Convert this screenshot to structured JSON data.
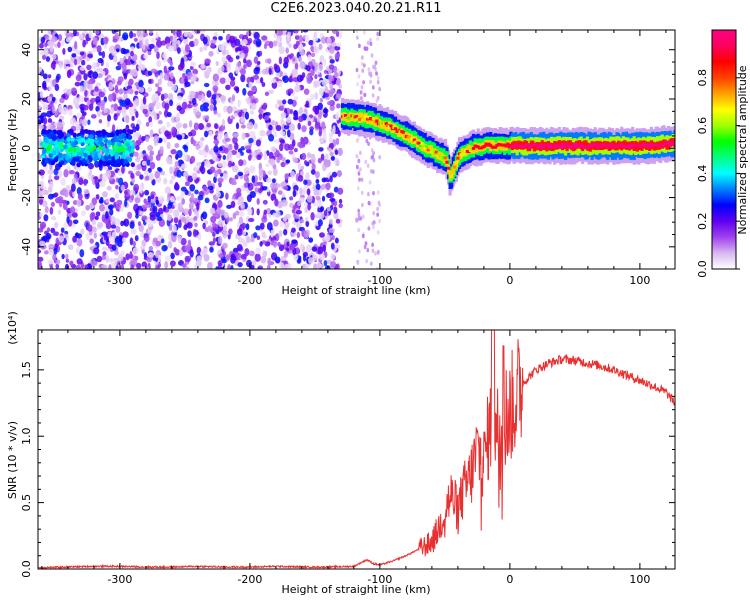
{
  "title": "C2E6.2023.040.20.21.R11",
  "chart_data": [
    {
      "type": "heatmap",
      "xlabel": "Height of straight line (km)",
      "ylabel": "Frequency (Hz)",
      "xlim": [
        -363,
        127
      ],
      "ylim": [
        -49,
        48
      ],
      "xticks": [
        -300,
        -200,
        -100,
        0,
        100
      ],
      "yticks": [
        -40,
        -20,
        0,
        20,
        40
      ],
      "colorbar": {
        "label": "Normalized spectral amplitude",
        "range": [
          0,
          1
        ],
        "ticks": [
          "0.0",
          "0.2",
          "0.4",
          "0.6",
          "0.8"
        ],
        "tick_values": [
          0,
          0.2,
          0.4,
          0.6,
          0.8
        ],
        "colormap": [
          "#ffffff",
          "#d8b8f0",
          "#a040f0",
          "#6000f0",
          "#0000ff",
          "#0080ff",
          "#00ffff",
          "#00ff80",
          "#00ff00",
          "#a0ff00",
          "#ffff00",
          "#ffa000",
          "#ff4000",
          "#ff0000",
          "#ff0060",
          "#ff0080"
        ]
      },
      "features": {
        "noise_region_x": [
          -363,
          -130
        ],
        "sparse_noise_region_x": [
          -118,
          -100
        ],
        "low_signal_band": {
          "x": [
            -360,
            -290
          ],
          "freq": 0,
          "amplitude": 0.35
        },
        "tone_track": [
          {
            "x": -130,
            "freq": 13
          },
          {
            "x": -110,
            "freq": 12
          },
          {
            "x": -95,
            "freq": 9
          },
          {
            "x": -80,
            "freq": 5
          },
          {
            "x": -65,
            "freq": 0
          },
          {
            "x": -55,
            "freq": -3
          },
          {
            "x": -50,
            "freq": -4
          },
          {
            "x": -47,
            "freq": -12
          },
          {
            "x": -40,
            "freq": -3
          },
          {
            "x": -30,
            "freq": 0
          },
          {
            "x": -20,
            "freq": 1
          },
          {
            "x": 0,
            "freq": 1
          },
          {
            "x": 50,
            "freq": 1
          },
          {
            "x": 100,
            "freq": 1
          },
          {
            "x": 127,
            "freq": 2
          }
        ]
      }
    },
    {
      "type": "line",
      "xlabel": "Height of straight line (km)",
      "ylabel": "SNR (10 * v/v)",
      "scale_note": "(x10⁴)",
      "xlim": [
        -363,
        127
      ],
      "ylim": [
        0,
        1.8
      ],
      "xticks": [
        -300,
        -200,
        -100,
        0,
        100
      ],
      "yticks": [
        "0.0",
        "0.5",
        "1.0",
        "1.5"
      ],
      "ytick_values": [
        0,
        0.5,
        1.0,
        1.5
      ],
      "line_color": "#e83030",
      "series": [
        {
          "x": [
            -363,
            -340,
            -320,
            -300,
            -280,
            -260,
            -240,
            -220,
            -200,
            -180,
            -160,
            -140,
            -120,
            -110,
            -105,
            -100,
            -90,
            -80,
            -70,
            -60,
            -55,
            -50,
            -45,
            -40,
            -35,
            -30,
            -25,
            -20,
            -15,
            -10,
            -5,
            0,
            10,
            20,
            30,
            40,
            50,
            60,
            70,
            80,
            90,
            100,
            110,
            120,
            127
          ],
          "y": [
            0.01,
            0.015,
            0.02,
            0.02,
            0.015,
            0.015,
            0.02,
            0.015,
            0.015,
            0.02,
            0.015,
            0.015,
            0.02,
            0.07,
            0.04,
            0.03,
            0.06,
            0.1,
            0.15,
            0.2,
            0.3,
            0.45,
            0.55,
            0.45,
            0.6,
            0.7,
            0.9,
            0.8,
            1.1,
            1.05,
            1.15,
            1.2,
            1.4,
            1.5,
            1.55,
            1.58,
            1.57,
            1.55,
            1.53,
            1.5,
            1.46,
            1.42,
            1.38,
            1.33,
            1.25
          ]
        }
      ]
    }
  ]
}
